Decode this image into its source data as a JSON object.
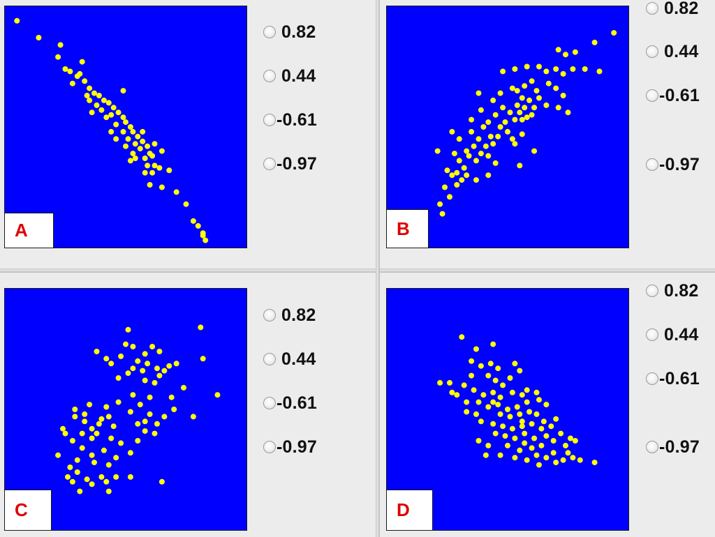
{
  "colors": {
    "plot_bg": "#0000fe",
    "point": "#ffff00",
    "label": "#e00000"
  },
  "panels": [
    {
      "label": "A",
      "options": [
        "0.82",
        "0.44",
        "-0.61",
        "-0.97"
      ],
      "points": [
        [
          0.05,
          0.06
        ],
        [
          0.14,
          0.13
        ],
        [
          0.23,
          0.16
        ],
        [
          0.22,
          0.21
        ],
        [
          0.32,
          0.23
        ],
        [
          0.25,
          0.26
        ],
        [
          0.27,
          0.27
        ],
        [
          0.3,
          0.29
        ],
        [
          0.33,
          0.31
        ],
        [
          0.28,
          0.32
        ],
        [
          0.35,
          0.34
        ],
        [
          0.37,
          0.36
        ],
        [
          0.39,
          0.37
        ],
        [
          0.34,
          0.37
        ],
        [
          0.41,
          0.39
        ],
        [
          0.43,
          0.4
        ],
        [
          0.38,
          0.41
        ],
        [
          0.45,
          0.42
        ],
        [
          0.4,
          0.43
        ],
        [
          0.47,
          0.44
        ],
        [
          0.44,
          0.45
        ],
        [
          0.49,
          0.46
        ],
        [
          0.42,
          0.46
        ],
        [
          0.5,
          0.48
        ],
        [
          0.46,
          0.49
        ],
        [
          0.52,
          0.5
        ],
        [
          0.53,
          0.52
        ],
        [
          0.49,
          0.52
        ],
        [
          0.55,
          0.54
        ],
        [
          0.51,
          0.55
        ],
        [
          0.57,
          0.56
        ],
        [
          0.54,
          0.57
        ],
        [
          0.59,
          0.58
        ],
        [
          0.56,
          0.59
        ],
        [
          0.6,
          0.61
        ],
        [
          0.53,
          0.61
        ],
        [
          0.61,
          0.62
        ],
        [
          0.58,
          0.63
        ],
        [
          0.62,
          0.66
        ],
        [
          0.59,
          0.66
        ],
        [
          0.64,
          0.67
        ],
        [
          0.61,
          0.69
        ],
        [
          0.68,
          0.68
        ],
        [
          0.6,
          0.74
        ],
        [
          0.65,
          0.75
        ],
        [
          0.71,
          0.77
        ],
        [
          0.49,
          0.35
        ],
        [
          0.36,
          0.44
        ],
        [
          0.44,
          0.52
        ],
        [
          0.54,
          0.63
        ],
        [
          0.62,
          0.57
        ],
        [
          0.57,
          0.52
        ],
        [
          0.75,
          0.82
        ],
        [
          0.78,
          0.89
        ],
        [
          0.8,
          0.91
        ],
        [
          0.82,
          0.95
        ],
        [
          0.83,
          0.97
        ],
        [
          0.82,
          0.94
        ],
        [
          0.31,
          0.28
        ],
        [
          0.35,
          0.39
        ],
        [
          0.5,
          0.58
        ],
        [
          0.46,
          0.55
        ],
        [
          0.65,
          0.6
        ],
        [
          0.58,
          0.69
        ],
        [
          0.52,
          0.64
        ]
      ]
    },
    {
      "label": "B",
      "options": [
        "0.82",
        "0.44",
        "-0.61",
        "-0.97"
      ],
      "points": [
        [
          0.22,
          0.82
        ],
        [
          0.23,
          0.86
        ],
        [
          0.26,
          0.79
        ],
        [
          0.29,
          0.74
        ],
        [
          0.24,
          0.75
        ],
        [
          0.31,
          0.72
        ],
        [
          0.27,
          0.7
        ],
        [
          0.29,
          0.69
        ],
        [
          0.25,
          0.68
        ],
        [
          0.32,
          0.67
        ],
        [
          0.3,
          0.64
        ],
        [
          0.21,
          0.6
        ],
        [
          0.28,
          0.61
        ],
        [
          0.34,
          0.62
        ],
        [
          0.37,
          0.64
        ],
        [
          0.33,
          0.6
        ],
        [
          0.36,
          0.58
        ],
        [
          0.39,
          0.61
        ],
        [
          0.42,
          0.62
        ],
        [
          0.41,
          0.58
        ],
        [
          0.44,
          0.57
        ],
        [
          0.38,
          0.55
        ],
        [
          0.43,
          0.54
        ],
        [
          0.46,
          0.54
        ],
        [
          0.47,
          0.5
        ],
        [
          0.5,
          0.52
        ],
        [
          0.52,
          0.55
        ],
        [
          0.49,
          0.48
        ],
        [
          0.53,
          0.47
        ],
        [
          0.56,
          0.47
        ],
        [
          0.55,
          0.44
        ],
        [
          0.58,
          0.46
        ],
        [
          0.6,
          0.45
        ],
        [
          0.57,
          0.42
        ],
        [
          0.61,
          0.42
        ],
        [
          0.59,
          0.39
        ],
        [
          0.63,
          0.38
        ],
        [
          0.56,
          0.38
        ],
        [
          0.54,
          0.41
        ],
        [
          0.51,
          0.44
        ],
        [
          0.48,
          0.42
        ],
        [
          0.45,
          0.45
        ],
        [
          0.42,
          0.48
        ],
        [
          0.4,
          0.5
        ],
        [
          0.35,
          0.52
        ],
        [
          0.47,
          0.36
        ],
        [
          0.52,
          0.34
        ],
        [
          0.57,
          0.33
        ],
        [
          0.62,
          0.35
        ],
        [
          0.6,
          0.31
        ],
        [
          0.54,
          0.35
        ],
        [
          0.67,
          0.32
        ],
        [
          0.7,
          0.34
        ],
        [
          0.73,
          0.37
        ],
        [
          0.71,
          0.42
        ],
        [
          0.75,
          0.44
        ],
        [
          0.73,
          0.28
        ],
        [
          0.66,
          0.27
        ],
        [
          0.63,
          0.25
        ],
        [
          0.58,
          0.25
        ],
        [
          0.53,
          0.26
        ],
        [
          0.48,
          0.27
        ],
        [
          0.38,
          0.36
        ],
        [
          0.39,
          0.43
        ],
        [
          0.35,
          0.47
        ],
        [
          0.3,
          0.55
        ],
        [
          0.56,
          0.53
        ],
        [
          0.61,
          0.6
        ],
        [
          0.55,
          0.66
        ],
        [
          0.42,
          0.7
        ],
        [
          0.45,
          0.65
        ],
        [
          0.37,
          0.72
        ],
        [
          0.77,
          0.26
        ],
        [
          0.7,
          0.26
        ],
        [
          0.71,
          0.18
        ],
        [
          0.74,
          0.2
        ],
        [
          0.78,
          0.19
        ],
        [
          0.86,
          0.15
        ],
        [
          0.94,
          0.11
        ],
        [
          0.88,
          0.27
        ],
        [
          0.82,
          0.26
        ],
        [
          0.66,
          0.41
        ],
        [
          0.53,
          0.57
        ],
        [
          0.44,
          0.39
        ],
        [
          0.27,
          0.52
        ],
        [
          0.33,
          0.7
        ]
      ]
    },
    {
      "label": "C",
      "options": [
        "0.82",
        "0.44",
        "-0.61",
        "-0.97"
      ],
      "points": [
        [
          0.51,
          0.17
        ],
        [
          0.53,
          0.24
        ],
        [
          0.58,
          0.27
        ],
        [
          0.61,
          0.24
        ],
        [
          0.64,
          0.26
        ],
        [
          0.55,
          0.3
        ],
        [
          0.59,
          0.31
        ],
        [
          0.63,
          0.33
        ],
        [
          0.66,
          0.34
        ],
        [
          0.68,
          0.32
        ],
        [
          0.48,
          0.28
        ],
        [
          0.44,
          0.31
        ],
        [
          0.51,
          0.35
        ],
        [
          0.47,
          0.37
        ],
        [
          0.58,
          0.38
        ],
        [
          0.62,
          0.39
        ],
        [
          0.64,
          0.36
        ],
        [
          0.71,
          0.31
        ],
        [
          0.74,
          0.41
        ],
        [
          0.69,
          0.45
        ],
        [
          0.6,
          0.45
        ],
        [
          0.56,
          0.48
        ],
        [
          0.53,
          0.44
        ],
        [
          0.52,
          0.51
        ],
        [
          0.47,
          0.47
        ],
        [
          0.43,
          0.53
        ],
        [
          0.39,
          0.56
        ],
        [
          0.36,
          0.58
        ],
        [
          0.33,
          0.52
        ],
        [
          0.29,
          0.5
        ],
        [
          0.35,
          0.48
        ],
        [
          0.42,
          0.49
        ],
        [
          0.38,
          0.6
        ],
        [
          0.44,
          0.62
        ],
        [
          0.48,
          0.64
        ],
        [
          0.41,
          0.67
        ],
        [
          0.36,
          0.69
        ],
        [
          0.32,
          0.66
        ],
        [
          0.28,
          0.63
        ],
        [
          0.25,
          0.6
        ],
        [
          0.3,
          0.71
        ],
        [
          0.37,
          0.72
        ],
        [
          0.43,
          0.73
        ],
        [
          0.46,
          0.7
        ],
        [
          0.52,
          0.68
        ],
        [
          0.55,
          0.63
        ],
        [
          0.58,
          0.59
        ],
        [
          0.63,
          0.56
        ],
        [
          0.66,
          0.53
        ],
        [
          0.7,
          0.5
        ],
        [
          0.78,
          0.53
        ],
        [
          0.81,
          0.16
        ],
        [
          0.82,
          0.29
        ],
        [
          0.88,
          0.44
        ],
        [
          0.24,
          0.58
        ],
        [
          0.22,
          0.69
        ],
        [
          0.3,
          0.76
        ],
        [
          0.28,
          0.8
        ],
        [
          0.34,
          0.79
        ],
        [
          0.42,
          0.8
        ],
        [
          0.46,
          0.78
        ],
        [
          0.52,
          0.78
        ],
        [
          0.65,
          0.8
        ],
        [
          0.29,
          0.53
        ],
        [
          0.33,
          0.55
        ],
        [
          0.36,
          0.62
        ],
        [
          0.4,
          0.54
        ],
        [
          0.55,
          0.56
        ],
        [
          0.6,
          0.52
        ],
        [
          0.38,
          0.26
        ],
        [
          0.42,
          0.29
        ],
        [
          0.5,
          0.23
        ],
        [
          0.57,
          0.34
        ],
        [
          0.45,
          0.57
        ],
        [
          0.32,
          0.6
        ],
        [
          0.27,
          0.74
        ],
        [
          0.31,
          0.84
        ],
        [
          0.26,
          0.78
        ],
        [
          0.43,
          0.84
        ],
        [
          0.36,
          0.81
        ],
        [
          0.4,
          0.78
        ],
        [
          0.53,
          0.33
        ],
        [
          0.58,
          0.55
        ],
        [
          0.62,
          0.6
        ]
      ]
    },
    {
      "label": "D",
      "options": [
        "0.82",
        "0.44",
        "-0.61",
        "-0.97"
      ],
      "points": [
        [
          0.31,
          0.2
        ],
        [
          0.37,
          0.25
        ],
        [
          0.44,
          0.23
        ],
        [
          0.35,
          0.3
        ],
        [
          0.39,
          0.32
        ],
        [
          0.43,
          0.31
        ],
        [
          0.46,
          0.33
        ],
        [
          0.53,
          0.31
        ],
        [
          0.55,
          0.34
        ],
        [
          0.42,
          0.36
        ],
        [
          0.45,
          0.38
        ],
        [
          0.48,
          0.4
        ],
        [
          0.51,
          0.37
        ],
        [
          0.26,
          0.39
        ],
        [
          0.32,
          0.4
        ],
        [
          0.36,
          0.42
        ],
        [
          0.4,
          0.44
        ],
        [
          0.44,
          0.43
        ],
        [
          0.47,
          0.45
        ],
        [
          0.52,
          0.43
        ],
        [
          0.56,
          0.44
        ],
        [
          0.58,
          0.42
        ],
        [
          0.62,
          0.43
        ],
        [
          0.29,
          0.44
        ],
        [
          0.33,
          0.47
        ],
        [
          0.38,
          0.47
        ],
        [
          0.42,
          0.49
        ],
        [
          0.46,
          0.48
        ],
        [
          0.5,
          0.5
        ],
        [
          0.54,
          0.49
        ],
        [
          0.58,
          0.47
        ],
        [
          0.63,
          0.46
        ],
        [
          0.66,
          0.48
        ],
        [
          0.47,
          0.52
        ],
        [
          0.51,
          0.53
        ],
        [
          0.55,
          0.52
        ],
        [
          0.59,
          0.51
        ],
        [
          0.62,
          0.52
        ],
        [
          0.65,
          0.55
        ],
        [
          0.7,
          0.54
        ],
        [
          0.39,
          0.55
        ],
        [
          0.44,
          0.56
        ],
        [
          0.48,
          0.57
        ],
        [
          0.52,
          0.58
        ],
        [
          0.56,
          0.57
        ],
        [
          0.6,
          0.56
        ],
        [
          0.64,
          0.58
        ],
        [
          0.68,
          0.57
        ],
        [
          0.72,
          0.6
        ],
        [
          0.45,
          0.6
        ],
        [
          0.49,
          0.61
        ],
        [
          0.53,
          0.62
        ],
        [
          0.57,
          0.6
        ],
        [
          0.61,
          0.62
        ],
        [
          0.66,
          0.61
        ],
        [
          0.57,
          0.64
        ],
        [
          0.6,
          0.66
        ],
        [
          0.64,
          0.65
        ],
        [
          0.69,
          0.63
        ],
        [
          0.74,
          0.65
        ],
        [
          0.76,
          0.62
        ],
        [
          0.78,
          0.63
        ],
        [
          0.55,
          0.67
        ],
        [
          0.5,
          0.65
        ],
        [
          0.42,
          0.65
        ],
        [
          0.38,
          0.63
        ],
        [
          0.53,
          0.7
        ],
        [
          0.58,
          0.71
        ],
        [
          0.62,
          0.69
        ],
        [
          0.66,
          0.7
        ],
        [
          0.7,
          0.72
        ],
        [
          0.73,
          0.71
        ],
        [
          0.75,
          0.68
        ],
        [
          0.8,
          0.71
        ],
        [
          0.86,
          0.72
        ],
        [
          0.41,
          0.69
        ],
        [
          0.47,
          0.69
        ],
        [
          0.63,
          0.73
        ],
        [
          0.33,
          0.51
        ],
        [
          0.22,
          0.39
        ],
        [
          0.27,
          0.43
        ],
        [
          0.35,
          0.36
        ],
        [
          0.44,
          0.47
        ],
        [
          0.37,
          0.52
        ],
        [
          0.56,
          0.55
        ],
        [
          0.69,
          0.68
        ],
        [
          0.77,
          0.7
        ]
      ]
    }
  ]
}
